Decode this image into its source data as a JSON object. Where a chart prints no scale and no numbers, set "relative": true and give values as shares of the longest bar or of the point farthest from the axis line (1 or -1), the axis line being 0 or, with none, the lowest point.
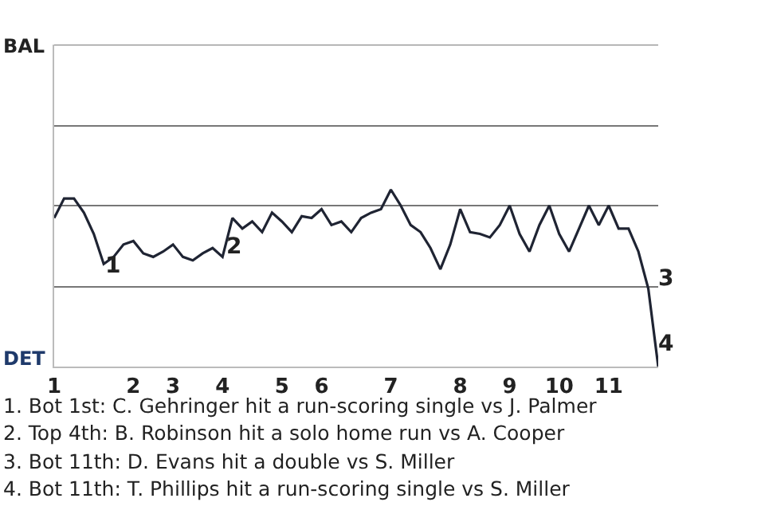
{
  "chart_data": {
    "type": "line",
    "relative": true,
    "categories": [
      "1",
      null,
      null,
      null,
      null,
      null,
      null,
      null,
      "2",
      null,
      null,
      null,
      "3",
      null,
      null,
      null,
      null,
      "4",
      null,
      null,
      null,
      null,
      null,
      "5",
      null,
      null,
      null,
      "6",
      null,
      null,
      null,
      null,
      null,
      null,
      "7",
      null,
      null,
      null,
      null,
      null,
      null,
      "8",
      null,
      null,
      null,
      null,
      "9",
      null,
      null,
      null,
      null,
      "10",
      null,
      null,
      null,
      null,
      "11",
      null,
      null,
      null,
      null,
      null
    ],
    "series": [
      {
        "color": "#1f2433",
        "values": [
          0.84,
          0.95,
          0.95,
          0.87,
          0.75,
          0.58,
          0.62,
          0.69,
          0.71,
          0.64,
          0.62,
          0.65,
          0.69,
          0.62,
          0.6,
          0.64,
          0.67,
          0.62,
          0.84,
          0.78,
          0.82,
          0.76,
          0.87,
          0.82,
          0.76,
          0.85,
          0.84,
          0.89,
          0.8,
          0.82,
          0.76,
          0.84,
          0.87,
          0.89,
          1,
          0.91,
          0.8,
          0.76,
          0.67,
          0.55,
          0.69,
          0.89,
          0.76,
          0.75,
          0.73,
          0.8,
          0.91,
          0.75,
          0.65,
          0.8,
          0.91,
          0.75,
          0.65,
          0.78,
          0.91,
          0.8,
          0.91,
          0.78,
          0.78,
          0.65,
          0.44,
          0
        ]
      }
    ],
    "marker": "none",
    "line_style": "solid",
    "ref_lines": [
      {
        "axis": "y",
        "value": 0.45,
        "color": "#777777"
      },
      {
        "axis": "y",
        "value": 0.91,
        "color": "#777777"
      },
      {
        "axis": "y",
        "value": 1.36,
        "color": "#777777"
      },
      {
        "axis": "y",
        "value": 1.82,
        "color": "#777777"
      }
    ],
    "annotations": [
      "1",
      "2",
      "3",
      "4",
      "BAL",
      "DET",
      "1. Bot 1st: C. Gehringer hit a run-scoring single vs J. Palmer",
      "2. Top 4th: B. Robinson hit a solo home run vs A. Cooper",
      "3. Bot 11th: D. Evans hit a double vs S. Miller",
      "4. Bot 11th: T. Phillips hit a run-scoring single vs S. Miller"
    ]
  }
}
